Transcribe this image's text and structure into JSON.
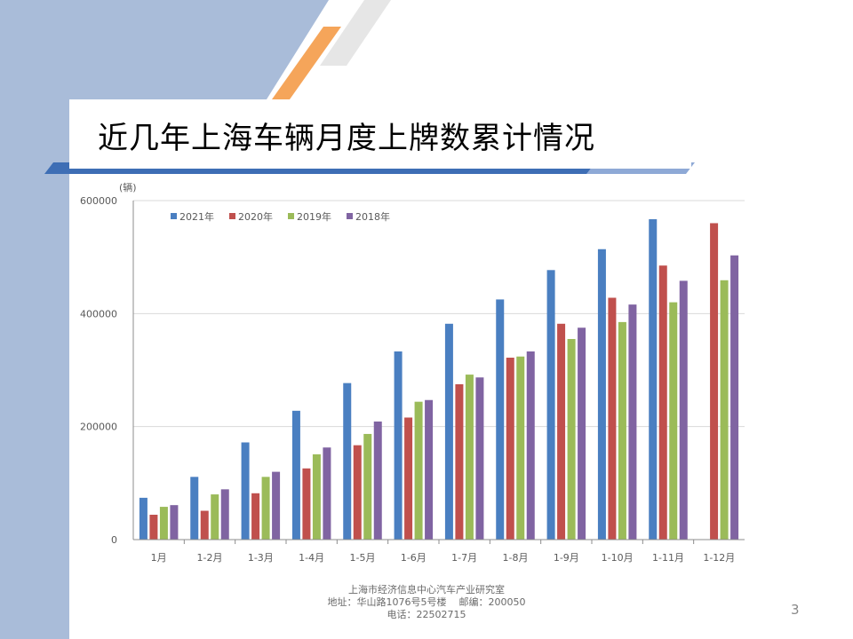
{
  "title": "近几年上海车辆月度上牌数累计情况",
  "footer": {
    "line1": "上海市经济信息中心汽车产业研究室",
    "line2": "地址：华山路1076号5号楼    邮编：200050",
    "line3": "电话：22502715"
  },
  "page_number": "3",
  "colors": {
    "band": "#a9bcd9",
    "bar_blue": "#4a7fc1",
    "bar_red": "#c0504d",
    "bar_green": "#9bbb59",
    "bar_purple": "#8064a2"
  },
  "chart_data": {
    "type": "bar",
    "unit_label": "(辆)",
    "categories": [
      "1月",
      "1-2月",
      "1-3月",
      "1-4月",
      "1-5月",
      "1-6月",
      "1-7月",
      "1-8月",
      "1-9月",
      "1-10月",
      "1-11月",
      "1-12月"
    ],
    "ylim": [
      0,
      600000
    ],
    "yticks": [
      0,
      200000,
      400000,
      600000
    ],
    "ytick_labels": [
      "0",
      "200000",
      "400000",
      "600000"
    ],
    "legend_position": "top-left",
    "series": [
      {
        "name": "2021年",
        "color": "#4a7fc1",
        "values": [
          74000,
          111000,
          172000,
          228000,
          277000,
          333000,
          382000,
          425000,
          477000,
          514000,
          567000,
          null
        ]
      },
      {
        "name": "2020年",
        "color": "#c0504d",
        "values": [
          44000,
          51000,
          82000,
          126000,
          167000,
          216000,
          275000,
          322000,
          382000,
          428000,
          485000,
          560000
        ]
      },
      {
        "name": "2019年",
        "color": "#9bbb59",
        "values": [
          58000,
          80000,
          111000,
          151000,
          187000,
          244000,
          292000,
          324000,
          355000,
          385000,
          420000,
          459000
        ]
      },
      {
        "name": "2018年",
        "color": "#8064a2",
        "values": [
          61000,
          89000,
          120000,
          163000,
          209000,
          247000,
          287000,
          333000,
          375000,
          416000,
          458000,
          503000
        ]
      }
    ]
  }
}
